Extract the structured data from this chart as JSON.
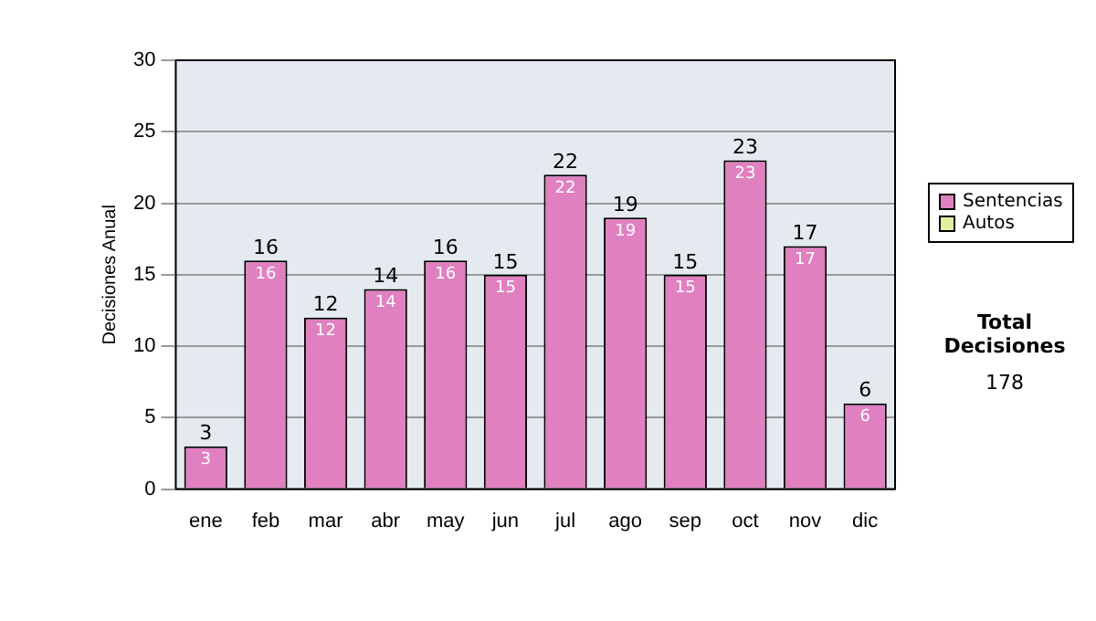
{
  "chart_data": {
    "type": "bar",
    "ylabel": "Decisiones Anual",
    "categories": [
      "ene",
      "feb",
      "mar",
      "abr",
      "may",
      "jun",
      "jul",
      "ago",
      "sep",
      "oct",
      "nov",
      "dic"
    ],
    "series": [
      {
        "name": "Sentencias",
        "color": "#e080c0",
        "values": [
          3,
          16,
          12,
          14,
          16,
          15,
          22,
          19,
          15,
          23,
          17,
          6
        ],
        "value_labels": [
          "3",
          "16",
          "12",
          "14",
          "16",
          "15",
          "22",
          "19",
          "15",
          "23",
          "17",
          "6"
        ]
      },
      {
        "name": "Autos",
        "color": "#e0f0a0",
        "values": [
          0,
          0,
          0,
          0,
          0,
          0,
          0,
          0,
          0,
          0,
          0,
          0
        ]
      }
    ],
    "stacked": true,
    "totals": [
      "3",
      "16",
      "12",
      "14",
      "16",
      "15",
      "22",
      "19",
      "15",
      "23",
      "17",
      "6"
    ],
    "ylim": [
      0,
      30
    ],
    "yticks": [
      0,
      5,
      10,
      15,
      20,
      25,
      30
    ],
    "grid": "y",
    "legend": "right",
    "annotations": [
      "Total Decisiones",
      "178"
    ]
  }
}
